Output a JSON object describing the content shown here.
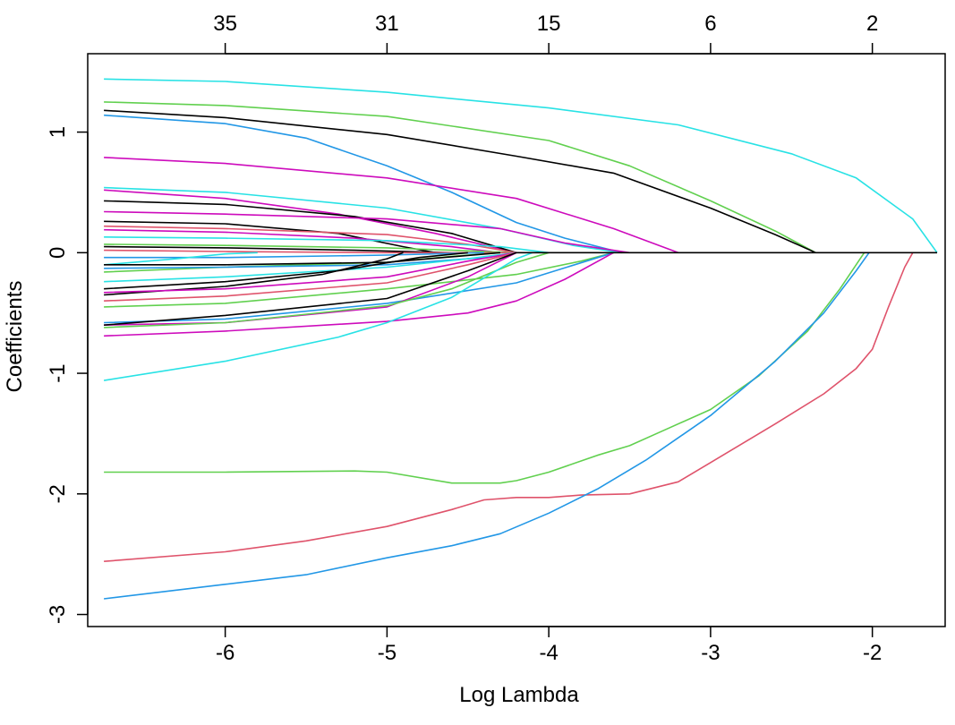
{
  "chart_data": {
    "type": "line",
    "title": "",
    "xlabel": "Log Lambda",
    "ylabel": "Coefficients",
    "xlim": [
      -6.85,
      -1.55
    ],
    "ylim": [
      -3.1,
      1.65
    ],
    "x_ticks": [
      -6,
      -5,
      -4,
      -3,
      -2
    ],
    "x_tick_labels": [
      "-6",
      "-5",
      "-4",
      "-3",
      "-2"
    ],
    "y_ticks": [
      -3,
      -2,
      -1,
      0,
      1
    ],
    "y_tick_labels": [
      "-3",
      "-2",
      "-1",
      "0",
      "1"
    ],
    "top_axis": {
      "positions": [
        -6,
        -5,
        -4,
        -3,
        -2
      ],
      "labels": [
        "35",
        "31",
        "15",
        "6",
        "2"
      ]
    },
    "grid": false,
    "legend": "none",
    "series": [
      {
        "color": "#28e2e5",
        "points": [
          [
            -6.75,
            1.44
          ],
          [
            -6,
            1.42
          ],
          [
            -5,
            1.33
          ],
          [
            -4,
            1.2
          ],
          [
            -3.2,
            1.06
          ],
          [
            -2.5,
            0.82
          ],
          [
            -2.1,
            0.62
          ],
          [
            -1.75,
            0.28
          ],
          [
            -1.6,
            0
          ]
        ]
      },
      {
        "color": "#61d04f",
        "points": [
          [
            -6.75,
            1.25
          ],
          [
            -6,
            1.22
          ],
          [
            -5,
            1.13
          ],
          [
            -4,
            0.93
          ],
          [
            -3.5,
            0.72
          ],
          [
            -3,
            0.43
          ],
          [
            -2.6,
            0.18
          ],
          [
            -2.35,
            0
          ]
        ]
      },
      {
        "color": "#000000",
        "points": [
          [
            -6.75,
            1.18
          ],
          [
            -6,
            1.12
          ],
          [
            -5,
            0.98
          ],
          [
            -4.2,
            0.8
          ],
          [
            -3.6,
            0.66
          ],
          [
            -3,
            0.37
          ],
          [
            -2.6,
            0.15
          ],
          [
            -2.35,
            0
          ]
        ]
      },
      {
        "color": "#2297e6",
        "points": [
          [
            -6.75,
            1.14
          ],
          [
            -6,
            1.07
          ],
          [
            -5.5,
            0.95
          ],
          [
            -5,
            0.72
          ],
          [
            -4.6,
            0.5
          ],
          [
            -4.2,
            0.25
          ],
          [
            -3.9,
            0.12
          ],
          [
            -3.55,
            0
          ]
        ]
      },
      {
        "color": "#cd0bbc",
        "points": [
          [
            -6.75,
            0.79
          ],
          [
            -6,
            0.74
          ],
          [
            -5,
            0.62
          ],
          [
            -4.2,
            0.45
          ],
          [
            -3.6,
            0.2
          ],
          [
            -3.2,
            0
          ]
        ]
      },
      {
        "color": "#28e2e5",
        "points": [
          [
            -6.75,
            0.54
          ],
          [
            -6,
            0.5
          ],
          [
            -5,
            0.37
          ],
          [
            -4.3,
            0.2
          ],
          [
            -3.85,
            0.06
          ],
          [
            -3.55,
            0
          ]
        ]
      },
      {
        "color": "#cd0bbc",
        "points": [
          [
            -6.75,
            0.52
          ],
          [
            -6,
            0.45
          ],
          [
            -5.3,
            0.32
          ],
          [
            -4.7,
            0.16
          ],
          [
            -4.2,
            0
          ]
        ]
      },
      {
        "color": "#000000",
        "points": [
          [
            -6.75,
            0.43
          ],
          [
            -6,
            0.4
          ],
          [
            -5.2,
            0.3
          ],
          [
            -4.6,
            0.16
          ],
          [
            -4.2,
            0
          ]
        ]
      },
      {
        "color": "#cd0bbc",
        "points": [
          [
            -6.75,
            0.34
          ],
          [
            -6,
            0.32
          ],
          [
            -5,
            0.28
          ],
          [
            -4.3,
            0.2
          ],
          [
            -3.9,
            0.08
          ],
          [
            -3.5,
            0
          ]
        ]
      },
      {
        "color": "#000000",
        "points": [
          [
            -6.75,
            0.26
          ],
          [
            -6,
            0.24
          ],
          [
            -5.3,
            0.16
          ],
          [
            -4.9,
            0.05
          ],
          [
            -4.7,
            0
          ]
        ]
      },
      {
        "color": "#df536b",
        "points": [
          [
            -6.75,
            0.22
          ],
          [
            -6,
            0.2
          ],
          [
            -5,
            0.15
          ],
          [
            -4.5,
            0.07
          ],
          [
            -4.2,
            0
          ]
        ]
      },
      {
        "color": "#cd0bbc",
        "points": [
          [
            -6.75,
            0.19
          ],
          [
            -6,
            0.17
          ],
          [
            -5.2,
            0.12
          ],
          [
            -4.6,
            0.05
          ],
          [
            -4.3,
            0
          ]
        ]
      },
      {
        "color": "#28e2e5",
        "points": [
          [
            -6.75,
            0.13
          ],
          [
            -6,
            0.12
          ],
          [
            -5,
            0.1
          ],
          [
            -4.3,
            0.05
          ],
          [
            -4.0,
            0
          ]
        ]
      },
      {
        "color": "#61d04f",
        "points": [
          [
            -6.75,
            0.07
          ],
          [
            -6,
            0.06
          ],
          [
            -5,
            0.04
          ],
          [
            -4.2,
            0
          ]
        ]
      },
      {
        "color": "#000000",
        "points": [
          [
            -6.75,
            0.05
          ],
          [
            -6,
            0.04
          ],
          [
            -5.2,
            0.02
          ],
          [
            -4.6,
            0
          ]
        ]
      },
      {
        "color": "#df536b",
        "points": [
          [
            -6.75,
            0.02
          ],
          [
            -6,
            0.01
          ],
          [
            -5,
            0
          ],
          [
            -4.2,
            0
          ]
        ]
      },
      {
        "color": "#2297e6",
        "points": [
          [
            -6.75,
            -0.04
          ],
          [
            -6,
            -0.04
          ],
          [
            -5,
            -0.02
          ],
          [
            -4.4,
            0
          ]
        ]
      },
      {
        "color": "#28e2e5",
        "points": [
          [
            -6.75,
            -0.1
          ],
          [
            -6.3,
            -0.05
          ],
          [
            -6,
            -0.01
          ],
          [
            -5.8,
            0
          ]
        ]
      },
      {
        "color": "#61d04f",
        "points": [
          [
            -6.75,
            -0.16
          ],
          [
            -6,
            -0.12
          ],
          [
            -5,
            -0.08
          ],
          [
            -4.6,
            -0.03
          ],
          [
            -4.3,
            0
          ]
        ]
      },
      {
        "color": "#000000",
        "points": [
          [
            -6.75,
            -0.1
          ],
          [
            -6,
            -0.1
          ],
          [
            -5,
            -0.08
          ],
          [
            -4.3,
            0
          ]
        ]
      },
      {
        "color": "#2297e6",
        "points": [
          [
            -6.75,
            -0.13
          ],
          [
            -6,
            -0.12
          ],
          [
            -5,
            -0.1
          ],
          [
            -4.4,
            -0.04
          ],
          [
            -4.2,
            0
          ]
        ]
      },
      {
        "color": "#28e2e5",
        "points": [
          [
            -6.75,
            -0.24
          ],
          [
            -6,
            -0.2
          ],
          [
            -5,
            -0.12
          ],
          [
            -4.5,
            -0.05
          ],
          [
            -4.2,
            0
          ]
        ]
      },
      {
        "color": "#000000",
        "points": [
          [
            -6.75,
            -0.35
          ],
          [
            -6,
            -0.28
          ],
          [
            -5.4,
            -0.18
          ],
          [
            -5,
            -0.05
          ],
          [
            -4.9,
            0
          ]
        ]
      },
      {
        "color": "#cd0bbc",
        "points": [
          [
            -6.75,
            -0.33
          ],
          [
            -6,
            -0.3
          ],
          [
            -5,
            -0.2
          ],
          [
            -4.5,
            -0.07
          ],
          [
            -4.2,
            0
          ]
        ]
      },
      {
        "color": "#df536b",
        "points": [
          [
            -6.75,
            -0.4
          ],
          [
            -6,
            -0.36
          ],
          [
            -5,
            -0.25
          ],
          [
            -4.5,
            -0.1
          ],
          [
            -4.2,
            0
          ]
        ]
      },
      {
        "color": "#61d04f",
        "points": [
          [
            -6.75,
            -0.45
          ],
          [
            -6,
            -0.42
          ],
          [
            -5,
            -0.3
          ],
          [
            -4.2,
            -0.18
          ],
          [
            -3.8,
            -0.07
          ],
          [
            -3.6,
            0
          ]
        ]
      },
      {
        "color": "#000000",
        "points": [
          [
            -6.75,
            -0.3
          ],
          [
            -6,
            -0.24
          ],
          [
            -5.3,
            -0.15
          ],
          [
            -4.8,
            -0.04
          ],
          [
            -4.5,
            0
          ]
        ]
      },
      {
        "color": "#2297e6",
        "points": [
          [
            -6.75,
            -0.58
          ],
          [
            -6,
            -0.55
          ],
          [
            -5,
            -0.42
          ],
          [
            -4.2,
            -0.25
          ],
          [
            -3.6,
            0
          ]
        ]
      },
      {
        "color": "#cd0bbc",
        "points": [
          [
            -6.75,
            -0.6
          ],
          [
            -6,
            -0.58
          ],
          [
            -5,
            -0.45
          ],
          [
            -4.5,
            -0.2
          ],
          [
            -4.2,
            0
          ]
        ]
      },
      {
        "color": "#000000",
        "points": [
          [
            -6.75,
            -0.6
          ],
          [
            -6,
            -0.52
          ],
          [
            -5,
            -0.38
          ],
          [
            -4.5,
            -0.15
          ],
          [
            -4.2,
            0
          ]
        ]
      },
      {
        "color": "#61d04f",
        "points": [
          [
            -6.75,
            -0.62
          ],
          [
            -6,
            -0.58
          ],
          [
            -5,
            -0.44
          ],
          [
            -4.6,
            -0.3
          ],
          [
            -4.2,
            -0.08
          ],
          [
            -4.0,
            0
          ]
        ]
      },
      {
        "color": "#cd0bbc",
        "points": [
          [
            -6.75,
            -0.69
          ],
          [
            -6,
            -0.65
          ],
          [
            -5,
            -0.57
          ],
          [
            -4.5,
            -0.5
          ],
          [
            -4.2,
            -0.4
          ],
          [
            -3.9,
            -0.22
          ],
          [
            -3.6,
            0
          ]
        ]
      },
      {
        "color": "#28e2e5",
        "points": [
          [
            -6.75,
            -1.06
          ],
          [
            -6,
            -0.9
          ],
          [
            -5.3,
            -0.7
          ],
          [
            -5,
            -0.58
          ],
          [
            -4.6,
            -0.37
          ],
          [
            -4.2,
            -0.05
          ],
          [
            -4.1,
            0
          ]
        ]
      },
      {
        "color": "#61d04f",
        "points": [
          [
            -6.75,
            -1.82
          ],
          [
            -6,
            -1.82
          ],
          [
            -5.2,
            -1.81
          ],
          [
            -5,
            -1.82
          ],
          [
            -4.6,
            -1.91
          ],
          [
            -4.3,
            -1.91
          ],
          [
            -4.2,
            -1.89
          ],
          [
            -4,
            -1.82
          ],
          [
            -3.7,
            -1.68
          ],
          [
            -3.5,
            -1.6
          ],
          [
            -3.3,
            -1.48
          ],
          [
            -3,
            -1.3
          ],
          [
            -2.7,
            -1.02
          ],
          [
            -2.4,
            -0.65
          ],
          [
            -2.2,
            -0.3
          ],
          [
            -2.05,
            0
          ]
        ]
      },
      {
        "color": "#df536b",
        "points": [
          [
            -6.75,
            -2.56
          ],
          [
            -6,
            -2.48
          ],
          [
            -5.5,
            -2.39
          ],
          [
            -5,
            -2.27
          ],
          [
            -4.6,
            -2.13
          ],
          [
            -4.4,
            -2.05
          ],
          [
            -4.2,
            -2.03
          ],
          [
            -4,
            -2.03
          ],
          [
            -3.8,
            -2.01
          ],
          [
            -3.5,
            -2.0
          ],
          [
            -3.2,
            -1.9
          ],
          [
            -3,
            -1.74
          ],
          [
            -2.6,
            -1.42
          ],
          [
            -2.3,
            -1.17
          ],
          [
            -2.1,
            -0.96
          ],
          [
            -2.0,
            -0.8
          ],
          [
            -1.9,
            -0.45
          ],
          [
            -1.8,
            -0.12
          ],
          [
            -1.75,
            0
          ]
        ]
      },
      {
        "color": "#2297e6",
        "points": [
          [
            -6.75,
            -2.87
          ],
          [
            -6,
            -2.75
          ],
          [
            -5.5,
            -2.67
          ],
          [
            -5,
            -2.53
          ],
          [
            -4.6,
            -2.43
          ],
          [
            -4.3,
            -2.33
          ],
          [
            -4,
            -2.16
          ],
          [
            -3.7,
            -1.96
          ],
          [
            -3.4,
            -1.72
          ],
          [
            -3,
            -1.35
          ],
          [
            -2.6,
            -0.9
          ],
          [
            -2.3,
            -0.5
          ],
          [
            -2.1,
            -0.15
          ],
          [
            -2.02,
            0
          ]
        ]
      },
      {
        "color": "#000000",
        "points": [
          [
            -4.2,
            0
          ],
          [
            -1.6,
            0
          ]
        ]
      }
    ]
  }
}
